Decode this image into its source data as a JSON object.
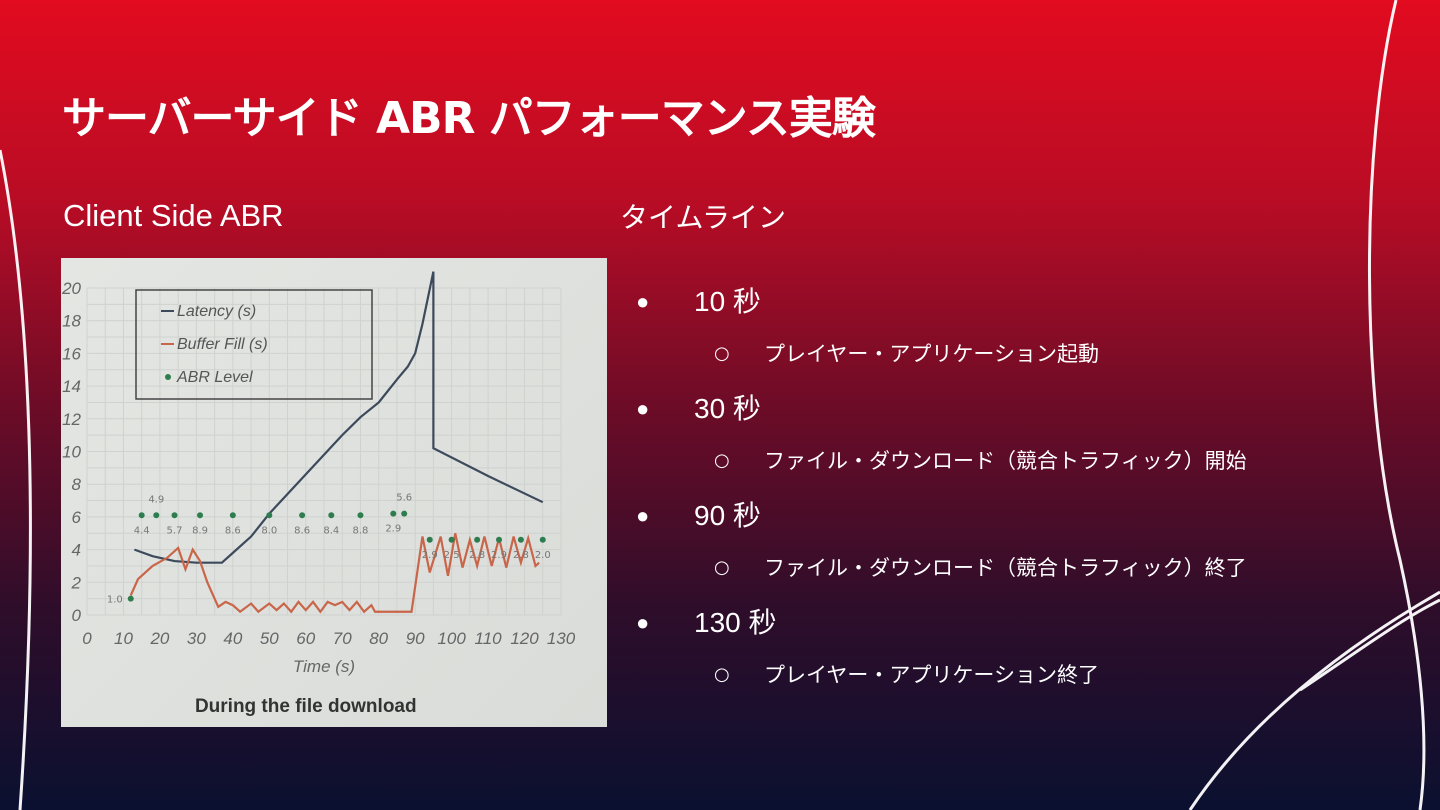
{
  "slide": {
    "title": "サーバーサイド ABR パフォーマンス実験",
    "left_heading": "Client Side ABR",
    "right_heading": "タイムライン",
    "timeline": [
      {
        "time": "10 秒",
        "event": "プレイヤー・アプリケーション起動"
      },
      {
        "time": "30 秒",
        "event": "ファイル・ダウンロード（競合トラフィック）開始"
      },
      {
        "time": "90 秒",
        "event": "ファイル・ダウンロード（競合トラフィック）終了"
      },
      {
        "time": "130 秒",
        "event": "プレイヤー・アプリケーション終了"
      }
    ],
    "colors": {
      "background_top": "#e20b1f",
      "background_bottom": "#0b1030"
    }
  },
  "chart_data": {
    "type": "line",
    "caption": "During the file download",
    "xlabel": "Time (s)",
    "ylabel": "",
    "xlim": [
      0,
      130
    ],
    "ylim": [
      0,
      20
    ],
    "x_ticks": [
      "0",
      "10",
      "20",
      "30",
      "40",
      "50",
      "60",
      "70",
      "80",
      "90",
      "100",
      "110",
      "120",
      "130"
    ],
    "y_ticks": [
      "0",
      "2",
      "4",
      "6",
      "8",
      "10",
      "12",
      "14",
      "16",
      "18",
      "20"
    ],
    "grid": true,
    "legend_position": "top-left",
    "series": [
      {
        "name": "Latency (s)",
        "color": "#3d4a5c",
        "points": [
          [
            13,
            4.0
          ],
          [
            18,
            3.6
          ],
          [
            24,
            3.3
          ],
          [
            30,
            3.2
          ],
          [
            37,
            3.2
          ],
          [
            40,
            3.8
          ],
          [
            45,
            4.8
          ],
          [
            50,
            6.2
          ],
          [
            55,
            7.4
          ],
          [
            60,
            8.6
          ],
          [
            65,
            9.8
          ],
          [
            70,
            11.0
          ],
          [
            75,
            12.1
          ],
          [
            80,
            13.0
          ],
          [
            85,
            14.4
          ],
          [
            88,
            15.2
          ],
          [
            90,
            16.0
          ],
          [
            92,
            17.8
          ],
          [
            95,
            21.0
          ],
          [
            95,
            10.2
          ],
          [
            110,
            8.5
          ],
          [
            125,
            6.9
          ]
        ]
      },
      {
        "name": "Buffer Fill (s)",
        "color": "#c9664a",
        "points": [
          [
            12,
            1.2
          ],
          [
            14,
            2.2
          ],
          [
            18,
            3.0
          ],
          [
            22,
            3.5
          ],
          [
            25,
            4.1
          ],
          [
            27,
            2.8
          ],
          [
            29,
            4.0
          ],
          [
            31,
            3.3
          ],
          [
            33,
            2.0
          ],
          [
            36,
            0.5
          ],
          [
            38,
            0.8
          ],
          [
            40,
            0.6
          ],
          [
            42,
            0.2
          ],
          [
            45,
            0.7
          ],
          [
            47,
            0.2
          ],
          [
            50,
            0.7
          ],
          [
            52,
            0.3
          ],
          [
            54,
            0.7
          ],
          [
            56,
            0.2
          ],
          [
            58,
            0.8
          ],
          [
            60,
            0.3
          ],
          [
            62,
            0.8
          ],
          [
            64,
            0.2
          ],
          [
            66,
            0.8
          ],
          [
            68,
            0.6
          ],
          [
            70,
            0.8
          ],
          [
            72,
            0.3
          ],
          [
            74,
            0.8
          ],
          [
            76,
            0.2
          ],
          [
            78,
            0.6
          ],
          [
            79,
            0.2
          ],
          [
            89,
            0.2
          ],
          [
            92,
            4.8
          ],
          [
            94,
            2.6
          ],
          [
            97,
            4.8
          ],
          [
            99,
            2.4
          ],
          [
            101,
            5.0
          ],
          [
            103,
            2.9
          ],
          [
            105,
            4.6
          ],
          [
            107,
            3.0
          ],
          [
            109,
            4.8
          ],
          [
            111,
            3.0
          ],
          [
            113,
            4.7
          ],
          [
            115,
            2.9
          ],
          [
            117,
            4.8
          ],
          [
            119,
            3.2
          ],
          [
            121,
            4.7
          ],
          [
            123,
            3.0
          ],
          [
            124,
            3.2
          ]
        ]
      },
      {
        "name": "ABR Level",
        "color": "#2e7d4f",
        "type": "scatter",
        "points": [
          [
            12,
            1.0,
            "1.0"
          ],
          [
            15,
            6.1,
            "4.4"
          ],
          [
            19,
            6.1,
            "4.9"
          ],
          [
            24,
            6.1,
            "5.7"
          ],
          [
            31,
            6.1,
            "8.9"
          ],
          [
            40,
            6.1,
            "8.6"
          ],
          [
            50,
            6.1,
            "8.0"
          ],
          [
            59,
            6.1,
            "8.6"
          ],
          [
            67,
            6.1,
            "8.4"
          ],
          [
            75,
            6.1,
            "8.8"
          ],
          [
            84,
            6.2,
            "2.9"
          ],
          [
            87,
            6.2,
            "5.6"
          ],
          [
            94,
            4.6,
            "2.9"
          ],
          [
            100,
            4.6,
            "2.5"
          ],
          [
            107,
            4.6,
            "2.8"
          ],
          [
            113,
            4.6,
            "2.9"
          ],
          [
            119,
            4.6,
            "2.8"
          ],
          [
            125,
            4.6,
            "2.0"
          ]
        ]
      }
    ]
  }
}
